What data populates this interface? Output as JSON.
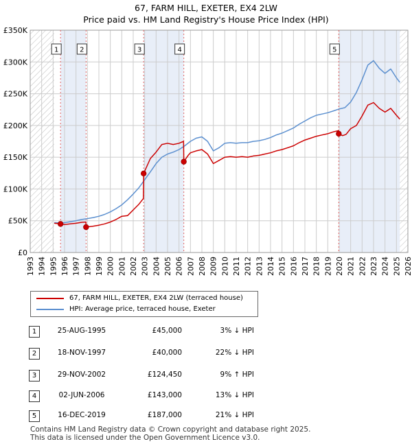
{
  "header": {
    "title_line1": "67, FARM HILL, EXETER, EX4 2LW",
    "title_line2": "Price paid vs. HM Land Registry's House Price Index (HPI)"
  },
  "legend": {
    "red_label": "67, FARM HILL, EXETER, EX4 2LW (terraced house)",
    "blue_label": "HPI: Average price, terraced house, Exeter"
  },
  "colors": {
    "red": "#cc0000",
    "blue": "#5b8fcf",
    "band": "#e8eef8",
    "grid": "#cccccc",
    "marker_line": "#e06060"
  },
  "chart_data": {
    "type": "line",
    "title": "Price paid vs. HM Land Registry's House Price Index (HPI)",
    "xlabel": "",
    "ylabel": "",
    "xlim": [
      1993,
      2026
    ],
    "ylim": [
      0,
      350000
    ],
    "x_ticks": [
      "1993",
      "1994",
      "1995",
      "1996",
      "1997",
      "1998",
      "1999",
      "2000",
      "2001",
      "2002",
      "2003",
      "2004",
      "2005",
      "2006",
      "2007",
      "2008",
      "2009",
      "2010",
      "2011",
      "2012",
      "2013",
      "2014",
      "2015",
      "2016",
      "2017",
      "2018",
      "2019",
      "2020",
      "2021",
      "2022",
      "2023",
      "2024",
      "2025",
      "2026"
    ],
    "y_ticks": [
      {
        "value": 0,
        "label": "£0"
      },
      {
        "value": 50000,
        "label": "£50K"
      },
      {
        "value": 100000,
        "label": "£100K"
      },
      {
        "value": 150000,
        "label": "£150K"
      },
      {
        "value": 200000,
        "label": "£200K"
      },
      {
        "value": 250000,
        "label": "£250K"
      },
      {
        "value": 300000,
        "label": "£300K"
      },
      {
        "value": 350000,
        "label": "£350K"
      }
    ],
    "hatched_ranges": [
      [
        1993,
        1995.1
      ],
      [
        2025.3,
        2026
      ]
    ],
    "shaded_bands": [
      [
        1995.65,
        1997.88
      ],
      [
        2002.91,
        2006.42
      ],
      [
        2019.96,
        2025.3
      ]
    ],
    "series": [
      {
        "name": "HPI: Average price, terraced house, Exeter",
        "color": "#5b8fcf",
        "x": [
          1995.1,
          1995.7,
          1996.0,
          1996.5,
          1997.0,
          1997.5,
          1997.9,
          1998.5,
          1999.0,
          1999.5,
          2000.0,
          2000.5,
          2001.0,
          2001.5,
          2002.0,
          2002.5,
          2002.9,
          2003.5,
          2004.0,
          2004.5,
          2005.0,
          2005.5,
          2006.0,
          2006.5,
          2007.0,
          2007.5,
          2008.0,
          2008.5,
          2009.0,
          2009.5,
          2010.0,
          2010.5,
          2011.0,
          2011.5,
          2012.0,
          2012.5,
          2013.0,
          2013.5,
          2014.0,
          2014.5,
          2015.0,
          2015.5,
          2016.0,
          2016.5,
          2017.0,
          2017.5,
          2018.0,
          2018.5,
          2019.0,
          2019.5,
          2020.0,
          2020.5,
          2021.0,
          2021.5,
          2022.0,
          2022.5,
          2023.0,
          2023.5,
          2024.0,
          2024.5,
          2025.0,
          2025.3
        ],
        "values": [
          47000,
          46500,
          47000,
          48500,
          50000,
          52000,
          53000,
          55000,
          57000,
          60000,
          64000,
          69000,
          75000,
          83000,
          92000,
          102000,
          112000,
          127000,
          140000,
          150000,
          155000,
          158000,
          162000,
          168000,
          175000,
          180000,
          182000,
          175000,
          160000,
          165000,
          172000,
          173000,
          172000,
          173000,
          173000,
          175000,
          176000,
          178000,
          181000,
          185000,
          188000,
          192000,
          196000,
          202000,
          207000,
          212000,
          216000,
          218000,
          220000,
          223000,
          226000,
          228000,
          237000,
          252000,
          272000,
          295000,
          302000,
          290000,
          282000,
          289000,
          275000,
          268000
        ]
      },
      {
        "name": "67, FARM HILL, EXETER, EX4 2LW (terraced house)",
        "color": "#cc0000",
        "x": [
          1995.1,
          1995.65,
          1996.0,
          1996.5,
          1997.0,
          1997.5,
          1997.87,
          1997.88,
          1998.5,
          1999.0,
          1999.5,
          2000.0,
          2000.5,
          2001.0,
          2001.5,
          2002.0,
          2002.5,
          2002.89,
          2002.91,
          2003.5,
          2004.0,
          2004.5,
          2005.0,
          2005.5,
          2006.0,
          2006.4,
          2006.42,
          2006.8,
          2007.0,
          2007.5,
          2008.0,
          2008.5,
          2009.0,
          2009.5,
          2010.0,
          2010.5,
          2011.0,
          2011.5,
          2012.0,
          2012.5,
          2013.0,
          2013.5,
          2014.0,
          2014.5,
          2015.0,
          2015.5,
          2016.0,
          2016.5,
          2017.0,
          2017.5,
          2018.0,
          2018.5,
          2019.0,
          2019.5,
          2019.94,
          2019.96,
          2020.3,
          2020.6,
          2021.0,
          2021.5,
          2022.0,
          2022.5,
          2023.0,
          2023.5,
          2024.0,
          2024.5,
          2025.0,
          2025.3
        ],
        "values": [
          46000,
          45000,
          44000,
          45000,
          46000,
          47500,
          48000,
          40000,
          41500,
          43000,
          45000,
          48000,
          52000,
          57000,
          58000,
          67000,
          76000,
          85000,
          124450,
          148000,
          158000,
          170000,
          172000,
          170000,
          172000,
          175000,
          143000,
          153000,
          157000,
          160000,
          162000,
          155000,
          140000,
          145000,
          150000,
          151000,
          150000,
          151000,
          150000,
          152000,
          153000,
          155000,
          157000,
          160000,
          162000,
          165000,
          168000,
          173000,
          177000,
          180000,
          183000,
          185000,
          187000,
          190000,
          192000,
          187000,
          184000,
          186000,
          195000,
          200000,
          215000,
          232000,
          236000,
          227000,
          221000,
          227000,
          216000,
          210000
        ]
      }
    ],
    "sales": [
      {
        "num": "1",
        "x": 1995.65,
        "value": 45000
      },
      {
        "num": "2",
        "x": 1997.88,
        "value": 40000
      },
      {
        "num": "3",
        "x": 2002.91,
        "value": 124450
      },
      {
        "num": "4",
        "x": 2006.42,
        "value": 143000
      },
      {
        "num": "5",
        "x": 2019.96,
        "value": 187000
      }
    ]
  },
  "table": {
    "rows": [
      {
        "num": "1",
        "date": "25-AUG-1995",
        "price": "£45,000",
        "hpi": "3% ↓ HPI"
      },
      {
        "num": "2",
        "date": "18-NOV-1997",
        "price": "£40,000",
        "hpi": "22% ↓ HPI"
      },
      {
        "num": "3",
        "date": "29-NOV-2002",
        "price": "£124,450",
        "hpi": "9% ↑ HPI"
      },
      {
        "num": "4",
        "date": "02-JUN-2006",
        "price": "£143,000",
        "hpi": "13% ↓ HPI"
      },
      {
        "num": "5",
        "date": "16-DEC-2019",
        "price": "£187,000",
        "hpi": "21% ↓ HPI"
      }
    ]
  },
  "footer": {
    "line1": "Contains HM Land Registry data © Crown copyright and database right 2025.",
    "line2": "This data is licensed under the Open Government Licence v3.0."
  }
}
